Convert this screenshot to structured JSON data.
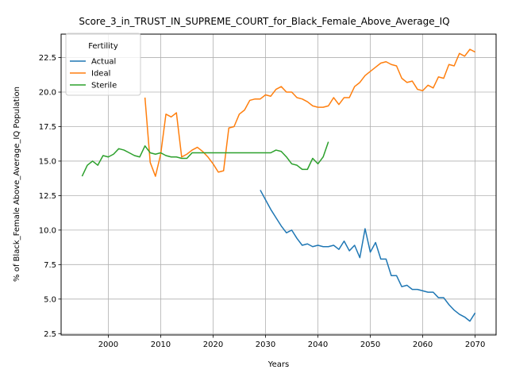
{
  "chart_data": {
    "type": "line",
    "title": "Score_3_in_TRUST_IN_SUPREME_COURT_for_Black_Female_Above_Average_IQ",
    "xlabel": "Years",
    "ylabel": "% of Black_Female Above_Average_IQ Population",
    "xlim": [
      1991,
      2074
    ],
    "ylim": [
      2.4,
      24.2
    ],
    "xticks": [
      2000,
      2010,
      2020,
      2030,
      2040,
      2050,
      2060,
      2070
    ],
    "yticks": [
      2.5,
      5.0,
      7.5,
      10.0,
      12.5,
      15.0,
      17.5,
      20.0,
      22.5
    ],
    "ytick_labels": [
      "2.5",
      "5.0",
      "7.5",
      "10.0",
      "12.5",
      "15.0",
      "17.5",
      "20.0",
      "22.5"
    ],
    "grid": true,
    "legend": {
      "title": "Fertility",
      "position": "top-left"
    },
    "series": [
      {
        "name": "Actual",
        "color": "#1f77b4",
        "x": [
          2029,
          2030,
          2031,
          2032,
          2033,
          2034,
          2035,
          2036,
          2037,
          2038,
          2039,
          2040,
          2041,
          2042,
          2043,
          2044,
          2045,
          2046,
          2047,
          2048,
          2049,
          2050,
          2051,
          2052,
          2053,
          2054,
          2055,
          2056,
          2057,
          2058,
          2059,
          2060,
          2061,
          2062,
          2063,
          2064,
          2065,
          2066,
          2067,
          2068,
          2069,
          2070
        ],
        "y": [
          12.9,
          12.2,
          11.5,
          10.9,
          10.3,
          9.8,
          10.0,
          9.4,
          8.9,
          9.0,
          8.8,
          8.9,
          8.8,
          8.8,
          8.9,
          8.6,
          9.2,
          8.5,
          8.9,
          8.0,
          10.1,
          8.4,
          9.1,
          7.9,
          7.9,
          6.7,
          6.7,
          5.9,
          6.0,
          5.7,
          5.7,
          5.6,
          5.5,
          5.5,
          5.1,
          5.1,
          4.6,
          4.2,
          3.9,
          3.7,
          3.4,
          4.0
        ]
      },
      {
        "name": "Ideal",
        "color": "#ff7f0e",
        "x": [
          2007,
          2008,
          2009,
          2010,
          2011,
          2012,
          2013,
          2014,
          2015,
          2016,
          2017,
          2018,
          2019,
          2020,
          2021,
          2022,
          2023,
          2024,
          2025,
          2026,
          2027,
          2028,
          2029,
          2030,
          2031,
          2032,
          2033,
          2034,
          2035,
          2036,
          2037,
          2038,
          2039,
          2040,
          2041,
          2042,
          2043,
          2044,
          2045,
          2046,
          2047,
          2048,
          2049,
          2050,
          2051,
          2052,
          2053,
          2054,
          2055,
          2056,
          2057,
          2058,
          2059,
          2060,
          2061,
          2062,
          2063,
          2064,
          2065,
          2066,
          2067,
          2068,
          2069,
          2070
        ],
        "y": [
          19.6,
          14.9,
          13.9,
          15.5,
          18.4,
          18.2,
          18.5,
          15.3,
          15.5,
          15.8,
          16.0,
          15.7,
          15.3,
          14.8,
          14.2,
          14.3,
          17.4,
          17.5,
          18.4,
          18.7,
          19.4,
          19.5,
          19.5,
          19.8,
          19.7,
          20.2,
          20.4,
          20.0,
          20.0,
          19.6,
          19.5,
          19.3,
          19.0,
          18.9,
          18.9,
          19.0,
          19.6,
          19.1,
          19.6,
          19.6,
          20.4,
          20.7,
          21.2,
          21.5,
          21.8,
          22.1,
          22.2,
          22.0,
          21.9,
          21.0,
          20.7,
          20.8,
          20.2,
          20.1,
          20.5,
          20.3,
          21.1,
          21.0,
          22.0,
          21.9,
          22.8,
          22.6,
          23.1,
          22.9
        ]
      },
      {
        "name": "Sterile",
        "color": "#2ca02c",
        "x": [
          1995,
          1996,
          1997,
          1998,
          1999,
          2000,
          2001,
          2002,
          2003,
          2004,
          2005,
          2006,
          2007,
          2008,
          2009,
          2010,
          2011,
          2012,
          2013,
          2014,
          2015,
          2016,
          2017,
          2018,
          2019,
          2020,
          2021,
          2022,
          2023,
          2024,
          2025,
          2026,
          2027,
          2028,
          2029,
          2030,
          2031,
          2032,
          2033,
          2034,
          2035,
          2036,
          2037,
          2038,
          2039,
          2040,
          2041,
          2042
        ],
        "y": [
          13.9,
          14.7,
          15.0,
          14.7,
          15.4,
          15.3,
          15.5,
          15.9,
          15.8,
          15.6,
          15.4,
          15.3,
          16.1,
          15.6,
          15.5,
          15.6,
          15.4,
          15.3,
          15.3,
          15.2,
          15.2,
          15.6,
          15.6,
          15.6,
          15.6,
          15.6,
          15.6,
          15.6,
          15.6,
          15.6,
          15.6,
          15.6,
          15.6,
          15.6,
          15.6,
          15.6,
          15.6,
          15.8,
          15.7,
          15.3,
          14.8,
          14.7,
          14.4,
          14.4,
          15.2,
          14.8,
          15.3,
          16.4
        ]
      }
    ]
  }
}
